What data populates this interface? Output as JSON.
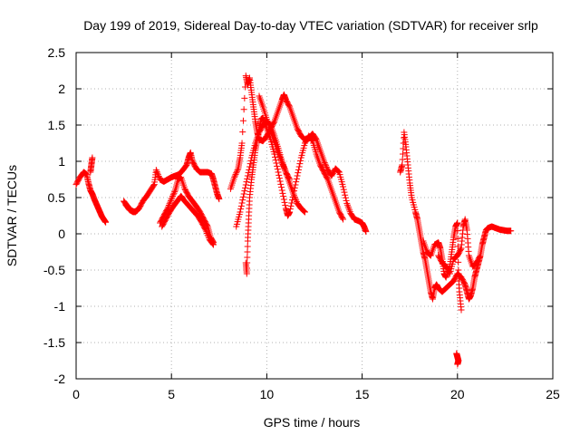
{
  "chart_data": {
    "type": "scatter",
    "title": "Day 199 of 2019, Sidereal Day-to-day VTEC variation (SDTVAR) for receiver srlp",
    "xlabel": "GPS time / hours",
    "ylabel": "SDTVAR / TECUs",
    "xlim": [
      0,
      25
    ],
    "ylim": [
      -2,
      2.5
    ],
    "grid": true,
    "x_ticks": [
      "0",
      "5",
      "10",
      "15",
      "20",
      "25"
    ],
    "y_ticks": [
      "2.5",
      "2",
      "1.5",
      "1",
      "0.5",
      "0",
      "-0.5",
      "-1",
      "-1.5",
      "-2"
    ],
    "marker": "+",
    "marker_color": "#ff0000",
    "series": [
      {
        "name": "SDTVAR",
        "tracks": [
          [
            [
              0.0,
              0.68
            ],
            [
              0.2,
              0.78
            ],
            [
              0.4,
              0.85
            ],
            [
              0.55,
              0.82
            ],
            [
              0.65,
              0.7
            ],
            [
              0.75,
              0.6
            ],
            [
              0.85,
              0.55
            ],
            [
              0.95,
              0.48
            ],
            [
              1.05,
              0.42
            ],
            [
              1.15,
              0.36
            ],
            [
              1.25,
              0.3
            ],
            [
              1.35,
              0.24
            ],
            [
              1.45,
              0.2
            ],
            [
              1.55,
              0.16
            ]
          ],
          [
            [
              0.75,
              0.85
            ],
            [
              0.8,
              0.95
            ],
            [
              0.85,
              1.05
            ]
          ],
          [
            [
              2.5,
              0.45
            ],
            [
              2.7,
              0.38
            ],
            [
              2.9,
              0.32
            ],
            [
              3.1,
              0.3
            ],
            [
              3.3,
              0.35
            ],
            [
              3.5,
              0.45
            ],
            [
              3.7,
              0.52
            ],
            [
              3.9,
              0.6
            ],
            [
              4.1,
              0.68
            ],
            [
              4.2,
              0.88
            ],
            [
              4.4,
              0.75
            ],
            [
              4.6,
              0.72
            ],
            [
              4.8,
              0.75
            ],
            [
              5.0,
              0.78
            ],
            [
              5.2,
              0.8
            ],
            [
              5.4,
              0.82
            ],
            [
              5.6,
              0.88
            ],
            [
              5.8,
              0.95
            ],
            [
              5.9,
              1.05
            ],
            [
              6.0,
              1.12
            ],
            [
              6.1,
              1.0
            ],
            [
              6.3,
              0.9
            ],
            [
              6.5,
              0.85
            ],
            [
              6.7,
              0.85
            ],
            [
              6.9,
              0.85
            ],
            [
              7.1,
              0.83
            ],
            [
              7.2,
              0.75
            ],
            [
              7.3,
              0.65
            ],
            [
              7.4,
              0.55
            ],
            [
              7.5,
              0.48
            ]
          ],
          [
            [
              2.6,
              0.4
            ],
            [
              2.8,
              0.33
            ],
            [
              3.0,
              0.3
            ],
            [
              3.2,
              0.32
            ]
          ],
          [
            [
              4.4,
              0.15
            ],
            [
              4.6,
              0.25
            ],
            [
              4.8,
              0.35
            ],
            [
              5.0,
              0.48
            ],
            [
              5.2,
              0.6
            ],
            [
              5.35,
              0.75
            ],
            [
              5.5,
              0.78
            ],
            [
              5.7,
              0.62
            ],
            [
              5.9,
              0.52
            ],
            [
              6.1,
              0.45
            ],
            [
              6.3,
              0.38
            ],
            [
              6.5,
              0.3
            ],
            [
              6.7,
              0.2
            ],
            [
              6.9,
              0.1
            ],
            [
              7.05,
              -0.05
            ],
            [
              7.2,
              -0.12
            ]
          ],
          [
            [
              4.5,
              0.1
            ],
            [
              4.7,
              0.2
            ],
            [
              4.9,
              0.3
            ],
            [
              5.1,
              0.38
            ],
            [
              5.3,
              0.45
            ],
            [
              5.5,
              0.52
            ],
            [
              5.6,
              0.48
            ],
            [
              5.8,
              0.42
            ],
            [
              6.0,
              0.36
            ],
            [
              6.2,
              0.3
            ],
            [
              6.4,
              0.24
            ],
            [
              6.6,
              0.15
            ],
            [
              6.8,
              0.05
            ],
            [
              7.0,
              -0.08
            ],
            [
              7.2,
              -0.15
            ]
          ],
          [
            [
              8.1,
              0.62
            ],
            [
              8.3,
              0.78
            ],
            [
              8.5,
              0.9
            ],
            [
              8.6,
              1.05
            ],
            [
              8.7,
              1.25
            ],
            [
              8.9,
              2.18
            ],
            [
              9.0,
              2.05
            ],
            [
              9.1,
              2.15
            ],
            [
              9.2,
              1.95
            ],
            [
              9.3,
              1.75
            ],
            [
              9.4,
              1.55
            ],
            [
              9.5,
              1.4
            ],
            [
              9.6,
              1.3
            ],
            [
              9.8,
              1.28
            ],
            [
              10.0,
              1.35
            ],
            [
              10.2,
              1.45
            ],
            [
              10.4,
              1.55
            ],
            [
              10.6,
              1.7
            ],
            [
              10.8,
              1.85
            ],
            [
              10.9,
              1.92
            ],
            [
              11.0,
              1.85
            ],
            [
              11.2,
              1.75
            ],
            [
              11.4,
              1.6
            ],
            [
              11.6,
              1.45
            ],
            [
              11.8,
              1.35
            ],
            [
              12.0,
              1.3
            ],
            [
              12.2,
              1.32
            ],
            [
              12.4,
              1.38
            ],
            [
              12.6,
              1.3
            ],
            [
              12.8,
              1.15
            ],
            [
              13.0,
              1.0
            ],
            [
              13.2,
              0.88
            ],
            [
              13.4,
              0.8
            ],
            [
              13.6,
              0.9
            ],
            [
              13.8,
              0.85
            ],
            [
              14.0,
              0.65
            ],
            [
              14.2,
              0.42
            ],
            [
              14.4,
              0.28
            ],
            [
              14.6,
              0.2
            ],
            [
              14.8,
              0.18
            ],
            [
              15.0,
              0.15
            ],
            [
              15.1,
              0.1
            ],
            [
              15.2,
              0.03
            ]
          ],
          [
            [
              8.9,
              -0.4
            ],
            [
              8.95,
              -0.55
            ],
            [
              9.0,
              -0.1
            ],
            [
              9.05,
              0.2
            ],
            [
              9.1,
              0.5
            ],
            [
              9.2,
              0.75
            ],
            [
              9.3,
              0.95
            ],
            [
              9.4,
              1.15
            ],
            [
              9.5,
              1.3
            ],
            [
              9.6,
              1.45
            ],
            [
              9.7,
              1.58
            ],
            [
              9.8,
              1.6
            ],
            [
              10.0,
              1.45
            ],
            [
              10.2,
              1.3
            ],
            [
              10.4,
              1.1
            ],
            [
              10.6,
              0.85
            ],
            [
              10.8,
              0.6
            ],
            [
              11.0,
              0.35
            ],
            [
              11.1,
              0.25
            ],
            [
              11.2,
              0.3
            ],
            [
              11.4,
              0.55
            ],
            [
              11.6,
              0.8
            ],
            [
              11.8,
              1.05
            ],
            [
              12.0,
              1.25
            ],
            [
              12.2,
              1.35
            ],
            [
              12.4,
              1.28
            ],
            [
              12.6,
              1.1
            ],
            [
              12.8,
              0.95
            ],
            [
              13.0,
              0.85
            ],
            [
              13.2,
              0.75
            ],
            [
              13.4,
              0.6
            ],
            [
              13.6,
              0.45
            ],
            [
              13.8,
              0.3
            ],
            [
              14.0,
              0.2
            ]
          ],
          [
            [
              8.4,
              0.1
            ],
            [
              8.6,
              0.3
            ],
            [
              8.8,
              0.55
            ],
            [
              9.0,
              0.8
            ],
            [
              9.2,
              1.05
            ],
            [
              9.4,
              1.25
            ],
            [
              9.6,
              1.4
            ],
            [
              9.8,
              1.5
            ],
            [
              10.0,
              1.55
            ],
            [
              10.2,
              1.5
            ],
            [
              10.4,
              1.35
            ],
            [
              10.6,
              1.18
            ],
            [
              10.8,
              1.0
            ],
            [
              11.0,
              0.85
            ],
            [
              11.2,
              0.7
            ],
            [
              11.4,
              0.55
            ],
            [
              11.6,
              0.42
            ],
            [
              11.8,
              0.35
            ],
            [
              12.0,
              0.3
            ]
          ],
          [
            [
              9.6,
              1.9
            ],
            [
              9.8,
              1.75
            ],
            [
              10.0,
              1.58
            ],
            [
              10.2,
              1.42
            ],
            [
              10.4,
              1.28
            ],
            [
              10.6,
              1.12
            ],
            [
              10.8,
              0.98
            ],
            [
              11.0,
              0.85
            ],
            [
              11.2,
              0.75
            ]
          ],
          [
            [
              17.0,
              0.85
            ],
            [
              17.1,
              0.95
            ],
            [
              17.2,
              1.4
            ],
            [
              17.3,
              1.2
            ],
            [
              17.4,
              0.95
            ],
            [
              17.5,
              0.7
            ],
            [
              17.6,
              0.5
            ],
            [
              17.8,
              0.3
            ],
            [
              17.9,
              0.2
            ],
            [
              18.0,
              0.05
            ],
            [
              18.1,
              -0.1
            ],
            [
              18.2,
              -0.25
            ],
            [
              18.3,
              -0.35
            ],
            [
              18.4,
              -0.5
            ],
            [
              18.5,
              -0.65
            ],
            [
              18.6,
              -0.8
            ],
            [
              18.7,
              -0.9
            ],
            [
              18.8,
              -0.75
            ],
            [
              18.9,
              -0.7
            ],
            [
              19.0,
              -0.75
            ],
            [
              19.2,
              -0.8
            ],
            [
              19.4,
              -0.75
            ],
            [
              19.6,
              -0.7
            ],
            [
              19.8,
              -0.65
            ],
            [
              20.0,
              -0.55
            ],
            [
              20.2,
              -0.6
            ],
            [
              20.4,
              -0.7
            ],
            [
              20.5,
              -0.8
            ],
            [
              20.6,
              -0.9
            ],
            [
              20.7,
              -0.85
            ],
            [
              20.8,
              -0.75
            ],
            [
              20.9,
              -0.6
            ],
            [
              21.0,
              -0.5
            ],
            [
              21.1,
              -0.4
            ],
            [
              21.2,
              -0.3
            ],
            [
              21.3,
              -0.15
            ],
            [
              21.4,
              -0.05
            ],
            [
              21.5,
              0.05
            ],
            [
              21.6,
              0.08
            ],
            [
              21.8,
              0.1
            ],
            [
              22.0,
              0.08
            ],
            [
              22.2,
              0.06
            ],
            [
              22.4,
              0.05
            ],
            [
              22.6,
              0.04
            ],
            [
              22.8,
              0.04
            ]
          ],
          [
            [
              18.2,
              -0.1
            ],
            [
              18.4,
              -0.25
            ],
            [
              18.6,
              -0.3
            ],
            [
              18.8,
              -0.15
            ],
            [
              19.0,
              -0.12
            ],
            [
              19.1,
              -0.2
            ],
            [
              19.2,
              -0.35
            ],
            [
              19.3,
              -0.55
            ],
            [
              19.4,
              -0.6
            ],
            [
              19.6,
              -0.45
            ],
            [
              19.7,
              -0.25
            ],
            [
              19.8,
              -0.05
            ],
            [
              19.9,
              0.1
            ],
            [
              20.0,
              0.15
            ],
            [
              20.05,
              -0.5
            ],
            [
              20.1,
              -0.8
            ],
            [
              20.2,
              -1.05
            ]
          ],
          [
            [
              19.0,
              -0.3
            ],
            [
              19.2,
              -0.4
            ],
            [
              19.4,
              -0.45
            ],
            [
              19.6,
              -0.55
            ],
            [
              19.8,
              -0.35
            ],
            [
              20.0,
              -0.3
            ],
            [
              20.2,
              -0.2
            ],
            [
              20.3,
              0.1
            ],
            [
              20.4,
              0.2
            ],
            [
              20.5,
              0.05
            ],
            [
              20.6,
              -0.3
            ],
            [
              20.8,
              -0.45
            ],
            [
              21.0,
              -0.4
            ],
            [
              21.2,
              -0.3
            ]
          ],
          [
            [
              19.95,
              -1.65
            ],
            [
              20.0,
              -1.7
            ],
            [
              20.05,
              -1.75
            ],
            [
              20.0,
              -1.8
            ]
          ]
        ]
      }
    ]
  }
}
